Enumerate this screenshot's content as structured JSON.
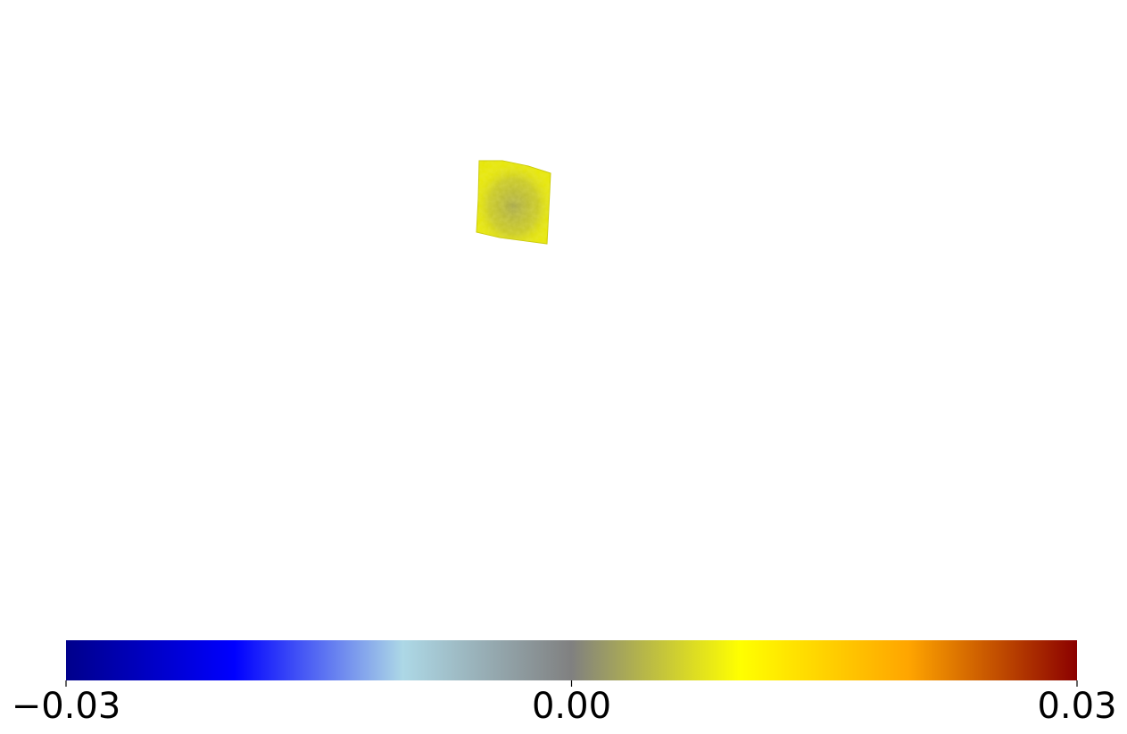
{
  "chart_data": {
    "type": "heatmap",
    "title": "",
    "xlabel": "",
    "ylabel": "",
    "surface_color": "#e6e600",
    "colorbar": {
      "orientation": "horizontal",
      "placement": "bottom",
      "range": [
        -0.03,
        0.03
      ],
      "ticks": [
        {
          "value": -0.03,
          "label": "−0.03"
        },
        {
          "value": 0.0,
          "label": "0.00"
        },
        {
          "value": 0.03,
          "label": "0.03"
        }
      ],
      "colormap": [
        {
          "value": -0.03,
          "color": "#00008b"
        },
        {
          "value": -0.02,
          "color": "#0000ff"
        },
        {
          "value": -0.01,
          "color": "#add8e6"
        },
        {
          "value": 0.0,
          "color": "#808080"
        },
        {
          "value": 0.01,
          "color": "#ffff00"
        },
        {
          "value": 0.02,
          "color": "#ffa500"
        },
        {
          "value": 0.03,
          "color": "#8b0000"
        }
      ]
    }
  }
}
